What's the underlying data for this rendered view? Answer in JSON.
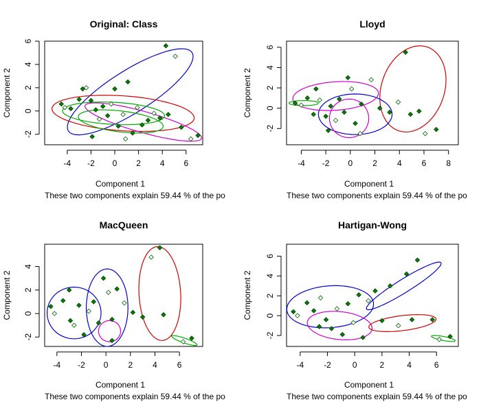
{
  "chart_data": [
    {
      "type": "scatter",
      "title": "Original: Class",
      "xlabel": "Component 1",
      "ylabel": "Component 2",
      "note": "These two components explain 59.44 % of the po",
      "xticks": [
        -4,
        -2,
        0,
        2,
        4,
        6
      ],
      "yticks": [
        -2,
        0,
        2,
        4,
        6
      ],
      "xlim": [
        -5.9,
        7.4
      ],
      "ylim": [
        -2.9,
        6.0
      ],
      "ellipses": [
        {
          "color": "#0000cc",
          "cx": 1.3,
          "cy": 1.65,
          "rx": 6.2,
          "ry": 1.8,
          "angle": 33
        },
        {
          "color": "#cc0000",
          "cx": 0.7,
          "cy": -0.2,
          "rx": 6.0,
          "ry": 1.5,
          "angle": -4
        },
        {
          "color": "#cc00cc",
          "cx": 2.4,
          "cy": -0.95,
          "rx": 5.1,
          "ry": 0.9,
          "angle": -16
        },
        {
          "color": "#00aa00",
          "cx": -0.1,
          "cy": -0.2,
          "rx": 4.3,
          "ry": 0.95,
          "angle": -3
        },
        {
          "color": "#00aa00",
          "cx": 0.5,
          "cy": -0.9,
          "rx": 3.6,
          "ry": 0.9,
          "angle": -7
        }
      ],
      "points": [
        {
          "x": -4.5,
          "y": 0.6,
          "s": "f"
        },
        {
          "x": -4.2,
          "y": 0.3,
          "s": "o"
        },
        {
          "x": -3.7,
          "y": 0.2,
          "s": "f"
        },
        {
          "x": -3.0,
          "y": 1.0,
          "s": "f"
        },
        {
          "x": -2.7,
          "y": 1.9,
          "s": "f"
        },
        {
          "x": -2.4,
          "y": 2.0,
          "s": "o"
        },
        {
          "x": -2.0,
          "y": 0.9,
          "s": "f"
        },
        {
          "x": -1.6,
          "y": 0.1,
          "s": "f"
        },
        {
          "x": -1.3,
          "y": -0.7,
          "s": "o"
        },
        {
          "x": -1.0,
          "y": 0.4,
          "s": "f"
        },
        {
          "x": -0.6,
          "y": -0.4,
          "s": "f"
        },
        {
          "x": -0.3,
          "y": 0.6,
          "s": "o"
        },
        {
          "x": 0.0,
          "y": 1.9,
          "s": "f"
        },
        {
          "x": 0.3,
          "y": -1.3,
          "s": "f"
        },
        {
          "x": 0.7,
          "y": -0.3,
          "s": "o"
        },
        {
          "x": 1.1,
          "y": 2.5,
          "s": "f"
        },
        {
          "x": 1.5,
          "y": -1.9,
          "s": "f"
        },
        {
          "x": 1.9,
          "y": 0.3,
          "s": "o"
        },
        {
          "x": 2.3,
          "y": -1.2,
          "s": "f"
        },
        {
          "x": 2.8,
          "y": -0.8,
          "s": "f"
        },
        {
          "x": 3.3,
          "y": -0.2,
          "s": "o"
        },
        {
          "x": 3.8,
          "y": -0.6,
          "s": "f"
        },
        {
          "x": 4.3,
          "y": 5.6,
          "s": "f"
        },
        {
          "x": 4.5,
          "y": -0.3,
          "s": "f"
        },
        {
          "x": 5.1,
          "y": 4.7,
          "s": "o"
        },
        {
          "x": 5.6,
          "y": -1.4,
          "s": "f"
        },
        {
          "x": 6.4,
          "y": -2.4,
          "s": "o"
        },
        {
          "x": 7.0,
          "y": -2.1,
          "s": "f"
        },
        {
          "x": -1.9,
          "y": -2.2,
          "s": "f"
        },
        {
          "x": 0.9,
          "y": -2.4,
          "s": "o"
        }
      ]
    },
    {
      "type": "scatter",
      "title": "Lloyd",
      "xlabel": "Component 1",
      "ylabel": "Component 2",
      "note": "These two components explain 59.44 % of the po",
      "xticks": [
        -4,
        -2,
        0,
        2,
        4,
        6,
        8
      ],
      "yticks": [
        -2,
        0,
        2,
        4,
        6
      ],
      "xlim": [
        -5.2,
        8.8
      ],
      "ylim": [
        -3.6,
        6.6
      ],
      "ellipses": [
        {
          "color": "#cc0000",
          "cx": 5.1,
          "cy": 1.9,
          "rx": 2.6,
          "ry": 4.3,
          "angle": -12
        },
        {
          "color": "#0000cc",
          "cx": 0.4,
          "cy": -0.6,
          "rx": 3.0,
          "ry": 2.0,
          "angle": 0
        },
        {
          "color": "#cc00cc",
          "cx": -1.2,
          "cy": 1.2,
          "rx": 3.5,
          "ry": 1.4,
          "angle": 5
        },
        {
          "color": "#cc00cc",
          "cx": -0.1,
          "cy": -1.0,
          "rx": 1.6,
          "ry": 1.9,
          "angle": 0
        },
        {
          "color": "#00aa00",
          "cx": -3.8,
          "cy": 0.5,
          "rx": 1.2,
          "ry": 0.25,
          "angle": 0
        }
      ],
      "points": [
        {
          "x": -4.5,
          "y": 0.5,
          "s": "f"
        },
        {
          "x": -4.0,
          "y": 0.3,
          "s": "o"
        },
        {
          "x": -3.5,
          "y": 1.0,
          "s": "f"
        },
        {
          "x": -2.8,
          "y": 1.9,
          "s": "f"
        },
        {
          "x": -2.5,
          "y": 0.8,
          "s": "o"
        },
        {
          "x": -2.0,
          "y": -0.8,
          "s": "f"
        },
        {
          "x": -1.6,
          "y": 0.2,
          "s": "f"
        },
        {
          "x": -1.2,
          "y": -1.2,
          "s": "o"
        },
        {
          "x": -0.9,
          "y": 0.9,
          "s": "f"
        },
        {
          "x": -0.5,
          "y": -0.4,
          "s": "f"
        },
        {
          "x": -0.2,
          "y": 3.0,
          "s": "f"
        },
        {
          "x": 0.1,
          "y": 1.9,
          "s": "o"
        },
        {
          "x": 0.4,
          "y": -1.5,
          "s": "f"
        },
        {
          "x": 0.9,
          "y": 0.4,
          "s": "f"
        },
        {
          "x": 1.7,
          "y": 2.8,
          "s": "o"
        },
        {
          "x": 2.4,
          "y": 0.0,
          "s": "f"
        },
        {
          "x": 3.2,
          "y": -0.4,
          "s": "f"
        },
        {
          "x": 3.9,
          "y": 0.6,
          "s": "o"
        },
        {
          "x": 4.5,
          "y": 5.5,
          "s": "f"
        },
        {
          "x": 4.9,
          "y": -0.6,
          "s": "f"
        },
        {
          "x": 5.6,
          "y": -0.3,
          "s": "f"
        },
        {
          "x": 6.1,
          "y": -2.5,
          "s": "o"
        },
        {
          "x": 7.0,
          "y": -2.1,
          "s": "f"
        },
        {
          "x": -1.8,
          "y": -2.2,
          "s": "f"
        },
        {
          "x": 0.8,
          "y": -2.5,
          "s": "o"
        },
        {
          "x": -3.0,
          "y": -0.6,
          "s": "f"
        }
      ]
    },
    {
      "type": "scatter",
      "title": "MacQueen",
      "xlabel": "Component 1",
      "ylabel": "Component 2",
      "note": "These two components explain 59.44 % of the po",
      "xticks": [
        -4,
        -2,
        0,
        2,
        4,
        6
      ],
      "yticks": [
        -2,
        0,
        2,
        4
      ],
      "xlim": [
        -5.0,
        7.9
      ],
      "ylim": [
        -2.8,
        5.9
      ],
      "ellipses": [
        {
          "color": "#cc0000",
          "cx": 4.4,
          "cy": 1.7,
          "rx": 1.7,
          "ry": 4.0,
          "angle": 3
        },
        {
          "color": "#0000cc",
          "cx": -2.6,
          "cy": 0.05,
          "rx": 2.2,
          "ry": 2.2,
          "angle": 0
        },
        {
          "color": "#0000cc",
          "cx": 0.1,
          "cy": 0.5,
          "rx": 1.7,
          "ry": 3.3,
          "angle": 0
        },
        {
          "color": "#cc00cc",
          "cx": 0.3,
          "cy": -1.5,
          "rx": 0.9,
          "ry": 0.9,
          "angle": 0
        },
        {
          "color": "#00aa00",
          "cx": 6.4,
          "cy": -2.3,
          "rx": 1.1,
          "ry": 0.2,
          "angle": -20
        }
      ],
      "points": [
        {
          "x": -4.5,
          "y": 0.6,
          "s": "f"
        },
        {
          "x": -4.2,
          "y": 0.0,
          "s": "o"
        },
        {
          "x": -3.5,
          "y": 1.1,
          "s": "f"
        },
        {
          "x": -3.0,
          "y": 2.0,
          "s": "f"
        },
        {
          "x": -2.6,
          "y": -1.0,
          "s": "o"
        },
        {
          "x": -2.2,
          "y": 0.7,
          "s": "f"
        },
        {
          "x": -1.8,
          "y": -1.8,
          "s": "f"
        },
        {
          "x": -1.4,
          "y": 0.2,
          "s": "o"
        },
        {
          "x": -1.0,
          "y": 1.0,
          "s": "f"
        },
        {
          "x": -0.6,
          "y": -0.8,
          "s": "f"
        },
        {
          "x": -0.2,
          "y": 3.0,
          "s": "f"
        },
        {
          "x": 0.2,
          "y": 1.8,
          "s": "o"
        },
        {
          "x": 0.5,
          "y": -0.5,
          "s": "f"
        },
        {
          "x": 0.9,
          "y": 2.1,
          "s": "f"
        },
        {
          "x": 1.5,
          "y": 0.9,
          "s": "o"
        },
        {
          "x": 2.2,
          "y": 0.1,
          "s": "f"
        },
        {
          "x": 3.0,
          "y": -0.3,
          "s": "f"
        },
        {
          "x": 3.7,
          "y": 4.8,
          "s": "o"
        },
        {
          "x": 4.4,
          "y": 5.6,
          "s": "f"
        },
        {
          "x": 4.7,
          "y": -0.1,
          "s": "f"
        },
        {
          "x": 6.3,
          "y": -2.4,
          "s": "o"
        },
        {
          "x": 7.0,
          "y": -2.1,
          "s": "f"
        },
        {
          "x": 0.5,
          "y": -2.3,
          "s": "f"
        },
        {
          "x": -2.9,
          "y": -0.6,
          "s": "f"
        }
      ]
    },
    {
      "type": "scatter",
      "title": "Hartigan-Wong",
      "xlabel": "Component 1",
      "ylabel": "Component 2",
      "note": "These two components explain 59.44 % of the po",
      "xticks": [
        -4,
        -2,
        0,
        2,
        4,
        6
      ],
      "yticks": [
        -2,
        0,
        2,
        4,
        6
      ],
      "xlim": [
        -5.0,
        7.6
      ],
      "ylim": [
        -3.1,
        7.2
      ],
      "ellipses": [
        {
          "color": "#0000cc",
          "cx": -1.8,
          "cy": 0.9,
          "rx": 3.2,
          "ry": 2.1,
          "angle": 8
        },
        {
          "color": "#0000cc",
          "cx": 3.6,
          "cy": 3.0,
          "rx": 3.6,
          "ry": 0.6,
          "angle": 41
        },
        {
          "color": "#cc00cc",
          "cx": -1.1,
          "cy": -1.0,
          "rx": 2.4,
          "ry": 1.4,
          "angle": -10
        },
        {
          "color": "#cc0000",
          "cx": 3.5,
          "cy": -0.75,
          "rx": 2.5,
          "ry": 0.75,
          "angle": 10
        },
        {
          "color": "#00aa00",
          "cx": 6.5,
          "cy": -2.3,
          "rx": 0.9,
          "ry": 0.2,
          "angle": -15
        }
      ],
      "points": [
        {
          "x": -4.5,
          "y": 0.4,
          "s": "f"
        },
        {
          "x": -4.2,
          "y": 0.0,
          "s": "o"
        },
        {
          "x": -3.5,
          "y": 1.3,
          "s": "f"
        },
        {
          "x": -3.0,
          "y": 0.5,
          "s": "f"
        },
        {
          "x": -2.5,
          "y": 1.8,
          "s": "o"
        },
        {
          "x": -2.1,
          "y": -0.4,
          "s": "f"
        },
        {
          "x": -1.7,
          "y": -1.3,
          "s": "f"
        },
        {
          "x": -1.3,
          "y": 0.7,
          "s": "o"
        },
        {
          "x": -0.9,
          "y": -1.9,
          "s": "f"
        },
        {
          "x": -0.5,
          "y": 1.2,
          "s": "f"
        },
        {
          "x": -0.1,
          "y": -0.7,
          "s": "o"
        },
        {
          "x": 0.3,
          "y": 2.1,
          "s": "f"
        },
        {
          "x": 0.6,
          "y": -2.2,
          "s": "f"
        },
        {
          "x": 1.0,
          "y": 1.5,
          "s": "o"
        },
        {
          "x": 1.5,
          "y": 2.5,
          "s": "f"
        },
        {
          "x": 2.0,
          "y": -0.5,
          "s": "f"
        },
        {
          "x": 2.6,
          "y": 3.0,
          "s": "f"
        },
        {
          "x": 3.2,
          "y": -1.0,
          "s": "o"
        },
        {
          "x": 3.8,
          "y": 4.2,
          "s": "f"
        },
        {
          "x": 4.2,
          "y": -0.4,
          "s": "f"
        },
        {
          "x": 4.6,
          "y": 5.6,
          "s": "f"
        },
        {
          "x": 5.7,
          "y": -0.4,
          "s": "f"
        },
        {
          "x": 6.2,
          "y": -2.4,
          "s": "o"
        },
        {
          "x": 7.0,
          "y": -2.1,
          "s": "f"
        },
        {
          "x": -2.6,
          "y": -1.1,
          "s": "f"
        }
      ]
    }
  ]
}
